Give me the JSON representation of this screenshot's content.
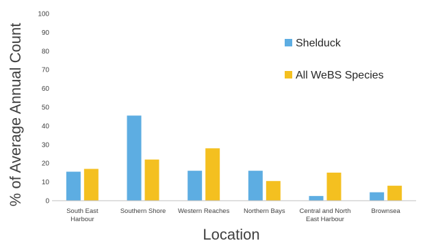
{
  "chart_data": {
    "type": "bar",
    "categories": [
      "South East Harbour",
      "Southern Shore",
      "Western Reaches",
      "Northern Bays",
      "Central and North East Harbour",
      "Brownsea"
    ],
    "category_lines": [
      [
        "South East",
        "Harbour"
      ],
      [
        "Southern Shore"
      ],
      [
        "Western Reaches"
      ],
      [
        "Northern Bays"
      ],
      [
        "Central and North",
        "East Harbour"
      ],
      [
        "Brownsea"
      ]
    ],
    "series": [
      {
        "name": "Shelduck",
        "values": [
          15.5,
          45.5,
          16,
          16,
          2.5,
          4.5
        ]
      },
      {
        "name": "All WeBS Species",
        "values": [
          17,
          22,
          28,
          10.5,
          15,
          8
        ]
      }
    ],
    "colors": [
      "#5DADE2",
      "#F4C020"
    ],
    "xlabel": "Location",
    "ylabel": "% of Average Annual Count",
    "ylim": [
      0,
      100
    ],
    "yticks": [
      0,
      10,
      20,
      30,
      40,
      50,
      60,
      70,
      80,
      90,
      100
    ],
    "grid": false,
    "legend_position": "upper-right, inside plot"
  }
}
